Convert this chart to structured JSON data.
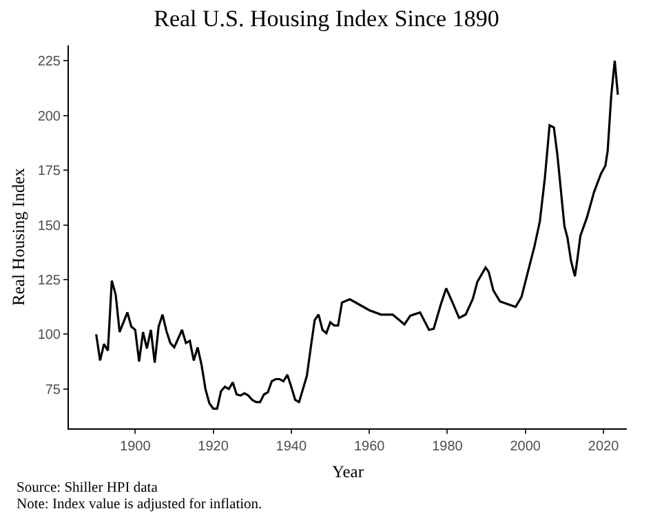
{
  "chart_data": {
    "type": "line",
    "title": "Real U.S. Housing Index Since 1890",
    "xlabel": "Year",
    "ylabel": "Real Housing Index",
    "x": [
      1890,
      1891,
      1892,
      1893,
      1894,
      1895,
      1896,
      1897,
      1898,
      1899,
      1900,
      1901,
      1902,
      1903,
      1904,
      1905,
      1906,
      1907,
      1908,
      1909,
      1910,
      1911,
      1912,
      1913,
      1914,
      1915,
      1916,
      1917,
      1918,
      1919,
      1920,
      1921,
      1922,
      1923,
      1924,
      1925,
      1926,
      1927,
      1928,
      1929,
      1930,
      1931,
      1932,
      1933,
      1934,
      1935,
      1936,
      1937,
      1938,
      1939,
      1940,
      1941,
      1942,
      1944,
      1945,
      1946,
      1947,
      1948,
      1949,
      1950,
      1951,
      1952,
      1953,
      1955,
      1957.5,
      1960,
      1963,
      1966,
      1969,
      1970.5,
      1973,
      1975.3,
      1976.5,
      1978.3,
      1979.7,
      1981.2,
      1983,
      1984.7,
      1986.5,
      1987.7,
      1989.8,
      1990.6,
      1991.8,
      1993.5,
      1995.9,
      1997.5,
      1999,
      2000.5,
      2002.3,
      2003.7,
      2005,
      2006.2,
      2007.3,
      2008.2,
      2010,
      2010.8,
      2011.7,
      2012.7,
      2013.3,
      2014.1,
      2015.8,
      2017.6,
      2019.4,
      2020.5,
      2021.1,
      2022,
      2022.9,
      2023.7
    ],
    "series": [
      {
        "color": "#000000",
        "values": [
          100,
          88,
          95.5,
          92.5,
          124.5,
          118,
          101,
          105.5,
          110,
          103.5,
          102,
          87.5,
          101,
          93.5,
          102,
          87,
          103.5,
          109,
          101.5,
          96,
          94,
          98,
          102,
          96,
          97,
          88,
          94,
          86,
          75,
          68.5,
          66,
          66,
          74,
          76,
          75,
          78,
          72.5,
          72,
          73,
          72,
          70,
          69,
          69,
          72.5,
          73.5,
          78.5,
          79.5,
          79.5,
          78.5,
          81.5,
          76,
          70,
          69,
          81,
          94,
          106.5,
          109,
          102,
          100.5,
          105.5,
          104,
          104,
          114.5,
          116,
          113.5,
          111,
          109,
          109,
          104.5,
          108.5,
          110,
          102,
          102.5,
          113.5,
          121,
          115,
          107.5,
          109,
          116,
          124,
          130.5,
          128.5,
          120,
          115,
          113.5,
          112.5,
          117,
          127.5,
          140,
          151.5,
          171.5,
          195.5,
          194.5,
          182,
          149.5,
          144,
          133.5,
          126.5,
          134,
          145,
          153.5,
          165,
          173.5,
          177,
          184,
          209,
          225,
          209.5
        ]
      }
    ],
    "xlim": [
      1883,
      2026
    ],
    "xticks": [
      1900,
      1920,
      1940,
      1960,
      1980,
      2000,
      2020
    ],
    "ylim": [
      57,
      232
    ],
    "yticks": [
      75,
      100,
      125,
      150,
      175,
      200,
      225
    ],
    "grid": false,
    "legend": false,
    "marker": "none",
    "line_style": "solid",
    "annotations": [
      "Source: Shiller HPI data",
      "Note: Index value is adjusted for inflation."
    ]
  }
}
